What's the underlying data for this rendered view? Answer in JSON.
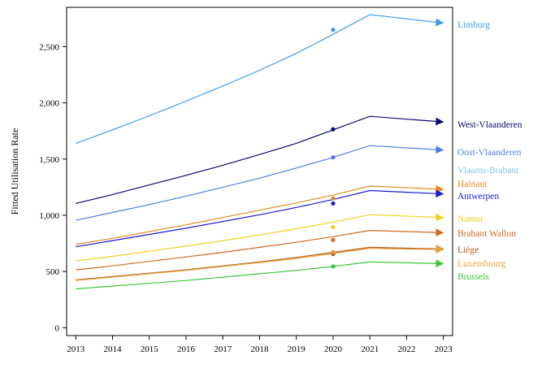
{
  "chart_data": {
    "type": "line",
    "title": "",
    "xlabel": "",
    "ylabel": "Fitted Utilisation Rate",
    "x": [
      2013,
      2014,
      2015,
      2016,
      2017,
      2018,
      2019,
      2020,
      2021,
      2022,
      2023
    ],
    "x_ticks": [
      "2013",
      "2014",
      "2015",
      "2016",
      "2017",
      "2018",
      "2019",
      "2020",
      "2021",
      "2022",
      "2023"
    ],
    "y_ticks": [
      0,
      500,
      1000,
      1500,
      2000,
      2500
    ],
    "y_tick_labels": [
      "0",
      "500",
      "1,000",
      "1,500",
      "2,000",
      "2,500"
    ],
    "xlim": [
      2012.75,
      2023.25
    ],
    "ylim": [
      -70,
      2850
    ],
    "grid": false,
    "legend": "none",
    "series": [
      {
        "name": "Limburg",
        "color": "#3d9be9",
        "values": [
          1640,
          1760,
          1885,
          2015,
          2150,
          2290,
          2440,
          2610,
          2785,
          null,
          2710
        ],
        "observed_2020": 2650
      },
      {
        "name": "West-Vlaanderen",
        "color": "#0a0a6e",
        "values": [
          1105,
          1185,
          1270,
          1355,
          1445,
          1540,
          1640,
          1760,
          1880,
          null,
          1830
        ],
        "observed_2020": 1765
      },
      {
        "name": "Oost-Vlaanderen",
        "color": "#4f7de3",
        "values": [
          955,
          1025,
          1095,
          1170,
          1250,
          1330,
          1420,
          1515,
          1620,
          null,
          1580
        ],
        "observed_2020": 1515
      },
      {
        "name": "Vlaams-Brabant",
        "color": "#7ec2e8",
        "values": [
          null,
          null,
          null,
          null,
          null,
          null,
          null,
          null,
          null,
          null,
          null
        ],
        "observed_2020": null
      },
      {
        "name": "Hainaut",
        "color": "#e48a22",
        "values": [
          740,
          795,
          855,
          915,
          980,
          1045,
          1110,
          1180,
          1260,
          null,
          1230
        ],
        "observed_2020": 1150
      },
      {
        "name": "Antwerpen",
        "color": "#1a1acf",
        "values": [
          720,
          775,
          830,
          885,
          945,
          1005,
          1070,
          1140,
          1220,
          null,
          1190
        ],
        "observed_2020": 1105
      },
      {
        "name": "Namur",
        "color": "#f2d11a",
        "values": [
          595,
          635,
          680,
          725,
          775,
          825,
          880,
          940,
          1005,
          null,
          980
        ],
        "observed_2020": 895
      },
      {
        "name": "Brabant Wallon",
        "color": "#d2691e",
        "values": [
          515,
          550,
          590,
          630,
          670,
          715,
          760,
          810,
          865,
          null,
          845
        ],
        "observed_2020": 780
      },
      {
        "name": "Liège",
        "color": "#b35a1f",
        "values": [
          425,
          455,
          485,
          515,
          550,
          585,
          625,
          670,
          715,
          null,
          700
        ],
        "observed_2020": 655
      },
      {
        "name": "Luxembourg",
        "color": "#e8a33a",
        "values": [
          420,
          450,
          480,
          510,
          545,
          580,
          615,
          660,
          705,
          null,
          695
        ],
        "observed_2020": 675
      },
      {
        "name": "Brussels",
        "color": "#3ec63e",
        "values": [
          345,
          370,
          395,
          420,
          450,
          480,
          510,
          545,
          585,
          null,
          570
        ],
        "observed_2020": 545
      }
    ],
    "labels": [
      {
        "text": "Limburg",
        "color": "#3d9be9"
      },
      {
        "text": "West-Vlaanderen",
        "color": "#0a0a6e"
      },
      {
        "text": "Oost-Vlaanderen",
        "color": "#4f7de3"
      },
      {
        "text": "Vlaams-Brabant",
        "color": "#7ec2e8"
      },
      {
        "text": "Hainaut",
        "color": "#e48a22"
      },
      {
        "text": "Antwerpen",
        "color": "#1a1acf"
      },
      {
        "text": "Namur",
        "color": "#f2d11a"
      },
      {
        "text": "Brabant Wallon",
        "color": "#d2691e"
      },
      {
        "text": "Liège",
        "color": "#b35a1f"
      },
      {
        "text": "Luxembourg",
        "color": "#e8a33a"
      },
      {
        "text": "Brussels",
        "color": "#3ec63e"
      }
    ]
  }
}
